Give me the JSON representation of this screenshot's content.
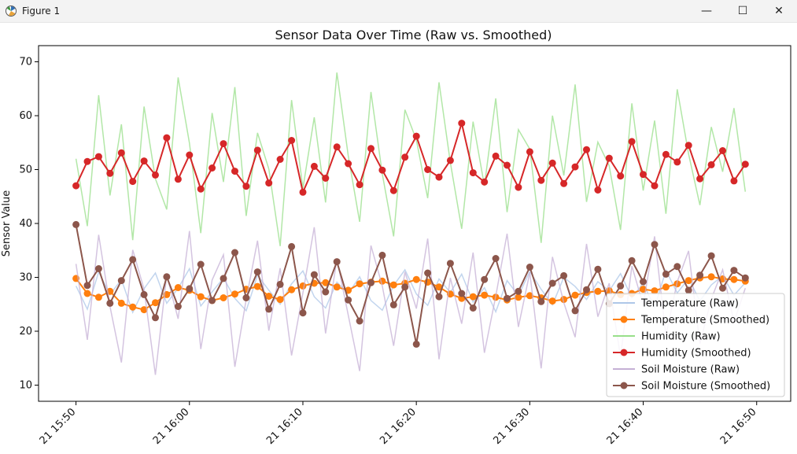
{
  "window": {
    "title": "Figure 1",
    "app_icon": "matplotlib-figure-icon",
    "minimize_label": "—",
    "maximize_label": "☐",
    "close_label": "✕"
  },
  "chart_data": {
    "type": "line",
    "title": "Sensor Data Over Time (Raw vs. Smoothed)",
    "xlabel": "",
    "ylabel": "Sensor Value",
    "ylim": [
      7,
      73
    ],
    "yticks": [
      10,
      20,
      30,
      40,
      50,
      60,
      70
    ],
    "x_start": "15:50",
    "x_end": "16:49",
    "xlim_minutes_from_1550": [
      -3.3,
      63
    ],
    "xticks": [
      {
        "label": "21 15:50",
        "minute": 0
      },
      {
        "label": "21 16:00",
        "minute": 10
      },
      {
        "label": "21 16:10",
        "minute": 20
      },
      {
        "label": "21 16:20",
        "minute": 30
      },
      {
        "label": "21 16:30",
        "minute": 40
      },
      {
        "label": "21 16:40",
        "minute": 50
      },
      {
        "label": "21 16:50",
        "minute": 60
      }
    ],
    "grid": false,
    "legend_position": "lower-right",
    "series": [
      {
        "name": "Temperature (Raw)",
        "color": "#aec7e8",
        "style": "raw",
        "values": [
          28.4,
          24.1,
          31.0,
          26.8,
          29.6,
          23.5,
          27.9,
          30.8,
          25.2,
          28.0,
          31.6,
          24.7,
          27.3,
          29.9,
          26.1,
          23.8,
          30.4,
          27.6,
          25.0,
          28.8,
          31.2,
          26.4,
          24.3,
          29.1,
          27.0,
          30.1,
          25.7,
          23.9,
          28.5,
          31.4,
          26.9,
          24.8,
          29.7,
          27.2,
          30.6,
          25.4,
          28.1,
          23.6,
          29.4,
          26.6,
          31.1,
          27.8,
          24.9,
          30.0,
          28.3,
          25.9,
          29.2,
          27.5,
          30.7,
          26.2,
          28.9,
          24.4,
          31.3,
          27.1,
          29.8,
          25.6,
          28.6,
          30.3,
          26.7,
          29.0
        ]
      },
      {
        "name": "Temperature (Smoothed)",
        "color": "#ff7f0e",
        "style": "smooth",
        "values": [
          29.8,
          27.0,
          26.3,
          27.4,
          25.2,
          24.5,
          24.0,
          25.3,
          26.8,
          28.1,
          27.6,
          26.4,
          25.7,
          26.2,
          26.9,
          27.8,
          28.3,
          26.5,
          25.9,
          27.7,
          28.4,
          28.9,
          29.0,
          28.2,
          27.6,
          28.8,
          29.1,
          29.3,
          28.6,
          28.9,
          29.6,
          29.1,
          28.2,
          26.9,
          26.1,
          26.4,
          26.7,
          26.3,
          25.8,
          26.3,
          26.6,
          26.2,
          25.6,
          25.9,
          26.7,
          27.2,
          27.4,
          27.5,
          26.8,
          27.0,
          27.8,
          27.5,
          28.2,
          28.8,
          29.4,
          29.9,
          30.1,
          29.7,
          29.6,
          29.3
        ]
      },
      {
        "name": "Humidity (Raw)",
        "color": "#98df8a",
        "style": "raw",
        "values": [
          52.0,
          39.5,
          63.8,
          45.2,
          58.4,
          36.9,
          61.7,
          48.3,
          42.6,
          67.1,
          54.9,
          38.2,
          60.5,
          47.7,
          65.3,
          41.4,
          56.8,
          50.1,
          35.8,
          62.9,
          46.5,
          59.7,
          43.9,
          68.0,
          52.6,
          40.3,
          64.4,
          49.2,
          37.6,
          61.1,
          55.5,
          44.7,
          66.2,
          51.3,
          39.0,
          58.9,
          47.0,
          63.2,
          42.1,
          57.4,
          53.8,
          36.4,
          60.0,
          48.9,
          65.8,
          44.0,
          55.1,
          50.7,
          38.8,
          62.3,
          46.1,
          59.1,
          41.8,
          64.9,
          52.9,
          43.4,
          57.9,
          49.6,
          61.4,
          45.9
        ]
      },
      {
        "name": "Humidity (Smoothed)",
        "color": "#d62728",
        "style": "smooth",
        "values": [
          47.0,
          51.5,
          52.4,
          49.3,
          53.1,
          47.8,
          51.6,
          49.0,
          55.9,
          48.2,
          52.7,
          46.4,
          50.3,
          54.8,
          49.7,
          46.9,
          53.6,
          47.5,
          51.9,
          55.4,
          45.8,
          50.6,
          48.4,
          54.2,
          51.1,
          47.2,
          53.9,
          49.9,
          46.1,
          52.3,
          56.2,
          50.0,
          48.6,
          51.7,
          58.6,
          49.4,
          47.7,
          52.5,
          50.8,
          46.7,
          53.3,
          48.0,
          51.2,
          47.4,
          50.5,
          53.7,
          46.2,
          52.1,
          48.8,
          55.2,
          49.1,
          47.0,
          52.8,
          51.4,
          54.5,
          48.3,
          50.9,
          53.5,
          47.9,
          51.0
        ]
      },
      {
        "name": "Soil Moisture (Raw)",
        "color": "#c5b0d5",
        "style": "raw",
        "values": [
          32.5,
          18.4,
          37.9,
          24.6,
          14.2,
          35.1,
          27.8,
          11.9,
          30.4,
          22.3,
          38.6,
          16.7,
          29.5,
          34.2,
          13.4,
          25.9,
          36.8,
          20.1,
          31.7,
          15.5,
          27.1,
          39.3,
          19.6,
          33.4,
          23.0,
          12.6,
          35.9,
          28.4,
          17.3,
          31.0,
          24.2,
          37.2,
          14.8,
          29.9,
          21.4,
          34.6,
          16.0,
          26.5,
          38.1,
          20.8,
          30.9,
          13.1,
          33.8,
          25.3,
          18.9,
          36.2,
          22.7,
          28.9,
          15.2,
          32.1,
          24.9,
          37.6,
          19.2,
          29.2,
          34.9,
          17.7,
          26.0,
          31.4,
          21.7,
          28.0
        ]
      },
      {
        "name": "Soil Moisture (Smoothed)",
        "color": "#8c564b",
        "style": "smooth",
        "values": [
          39.8,
          28.5,
          31.6,
          25.2,
          29.4,
          33.3,
          26.8,
          22.5,
          30.1,
          24.6,
          27.9,
          32.4,
          25.7,
          29.8,
          34.6,
          26.2,
          31.0,
          24.1,
          28.7,
          35.7,
          23.4,
          30.5,
          27.3,
          32.9,
          25.8,
          21.9,
          29.0,
          34.1,
          24.9,
          28.2,
          17.6,
          30.8,
          26.4,
          32.6,
          27.0,
          24.3,
          29.6,
          33.5,
          26.1,
          27.4,
          31.9,
          25.5,
          28.9,
          30.3,
          23.8,
          27.7,
          31.5,
          25.1,
          28.4,
          33.1,
          29.2,
          36.1,
          30.6,
          32.0,
          27.6,
          30.4,
          34.0,
          28.0,
          31.3,
          29.9
        ]
      }
    ]
  }
}
